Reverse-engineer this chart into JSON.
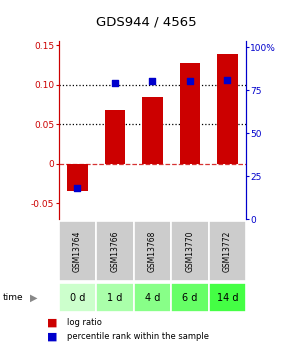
{
  "title": "GDS944 / 4565",
  "categories": [
    "GSM13764",
    "GSM13766",
    "GSM13768",
    "GSM13770",
    "GSM13772"
  ],
  "time_labels": [
    "0 d",
    "1 d",
    "4 d",
    "6 d",
    "14 d"
  ],
  "log_ratio": [
    -0.035,
    0.068,
    0.085,
    0.128,
    0.139
  ],
  "percentile_rank": [
    0.18,
    0.79,
    0.8,
    0.8,
    0.81
  ],
  "bar_color": "#cc0000",
  "dot_color": "#0000cc",
  "ylim_left": [
    -0.07,
    0.155
  ],
  "ylim_right": [
    0,
    1.033
  ],
  "yticks_left": [
    -0.05,
    0.0,
    0.05,
    0.1,
    0.15
  ],
  "ytick_labels_left": [
    "-0.05",
    "0",
    "0.05",
    "0.10",
    "0.15"
  ],
  "yticks_right": [
    0,
    0.25,
    0.5,
    0.75,
    1.0
  ],
  "ytick_labels_right": [
    "0",
    "25",
    "50",
    "75",
    "100%"
  ],
  "hline_dotted": [
    0.05,
    0.1
  ],
  "time_row_colors": [
    "#ccffcc",
    "#aaffaa",
    "#88ff88",
    "#66ff66",
    "#44ff44"
  ],
  "gsm_row_color": "#cccccc",
  "background_color": "#ffffff",
  "legend_bar_label": "log ratio",
  "legend_dot_label": "percentile rank within the sample"
}
